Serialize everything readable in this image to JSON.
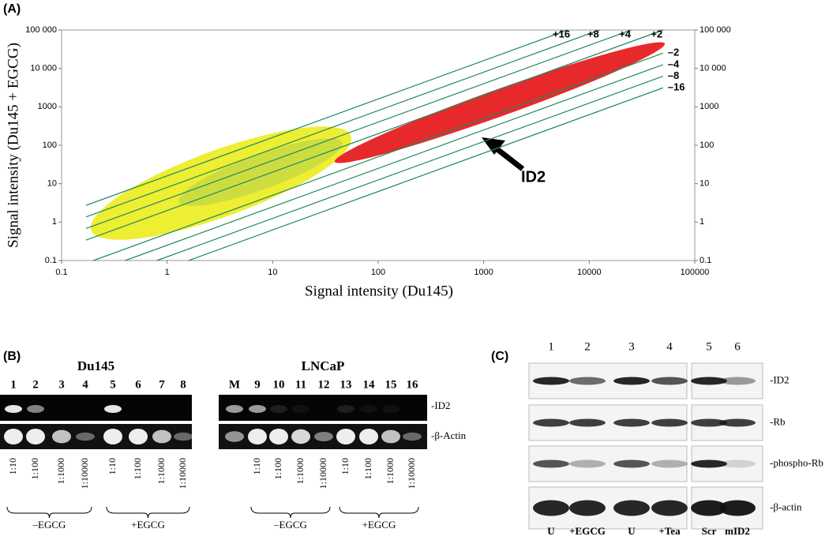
{
  "chart_data": {
    "type": "scatter",
    "panel_label": "(A)",
    "xlabel": "Signal intensity (Du145)",
    "ylabel": "Signal intensity (Du145 + EGCG)",
    "log_x": true,
    "log_y": true,
    "xlim": [
      0.1,
      100000
    ],
    "ylim": [
      0.1,
      100000
    ],
    "xticks": [
      0.1,
      1,
      10,
      100,
      1000,
      10000,
      100000
    ],
    "yticks": [
      0.1,
      1,
      10,
      100,
      1000,
      {
        "value": 10000,
        "label": "10 000"
      },
      {
        "value": 100000,
        "label": "100 000"
      }
    ],
    "line_color": "#1f8a5c",
    "fold_lines": [
      {
        "label": "+16",
        "value": 16
      },
      {
        "label": "+8",
        "value": 8
      },
      {
        "label": "+4",
        "value": 4
      },
      {
        "label": "+2",
        "value": 2
      },
      {
        "label": "–2",
        "value": 0.5
      },
      {
        "label": "–4",
        "value": 0.25
      },
      {
        "label": "–8",
        "value": 0.125
      },
      {
        "label": "–16",
        "value": 0.0625
      }
    ],
    "annotation": "ID2"
  },
  "panel_b": {
    "label": "(B)",
    "gels": [
      {
        "title": "Du145",
        "lanes": [
          "1",
          "2",
          "3",
          "4",
          "5",
          "6",
          "7",
          "8"
        ]
      },
      {
        "title": "LNCaP",
        "lanes": [
          "M",
          "9",
          "10",
          "11",
          "12",
          "13",
          "14",
          "15",
          "16"
        ]
      }
    ],
    "markers": [
      "-ID2",
      "-β-Actin"
    ],
    "dilutions": [
      "1:10",
      "1:100",
      "1:1000",
      "1:10000"
    ],
    "groups": [
      "–EGCG",
      "+EGCG"
    ]
  },
  "panel_c": {
    "label": "(C)",
    "lanes": [
      "1",
      "2",
      "3",
      "4",
      "5",
      "6"
    ],
    "markers": [
      "-ID2",
      "-Rb",
      "-phospho-Rb",
      "-β-actin"
    ],
    "conditions": [
      "U",
      "+EGCG",
      "U",
      "+Tea",
      "Scr",
      "mID2"
    ]
  }
}
